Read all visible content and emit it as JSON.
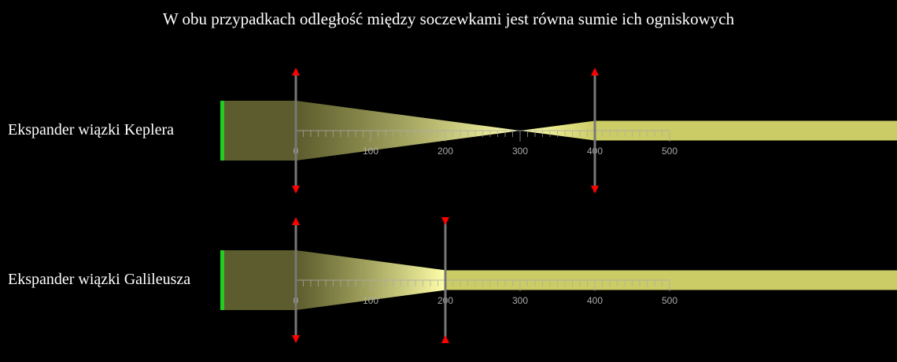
{
  "caption": "W obu przypadkach odległość między soczewkami jest równa sumie ich ogniskowych",
  "colors": {
    "background": "#000000",
    "source": "#22cc22",
    "beam": "#cccc66",
    "beam_focus": "#ffffaa",
    "lens_body": "#777777",
    "lens_arrow": "#ff0000",
    "ruler": "#aaaaaa"
  },
  "ruler": {
    "min": 0,
    "max": 500,
    "major_step": 100,
    "minor_step": 10,
    "tick_labels": [
      "0",
      "100",
      "200",
      "300",
      "400",
      "500"
    ]
  },
  "setups": [
    {
      "name": "Ekspander wiązki Keplera",
      "lens1": {
        "position": 0,
        "type": "converging"
      },
      "lens2": {
        "position": 400,
        "type": "converging"
      },
      "focus_position": 300,
      "beam_in_halfwidth": 38,
      "beam_out_halfwidth": 12.5
    },
    {
      "name": "Ekspander wiązki Galileusza",
      "lens1": {
        "position": 0,
        "type": "converging"
      },
      "lens2": {
        "position": 200,
        "type": "diverging"
      },
      "focus_position": 300,
      "beam_in_halfwidth": 38,
      "beam_out_halfwidth": 12.5
    }
  ]
}
